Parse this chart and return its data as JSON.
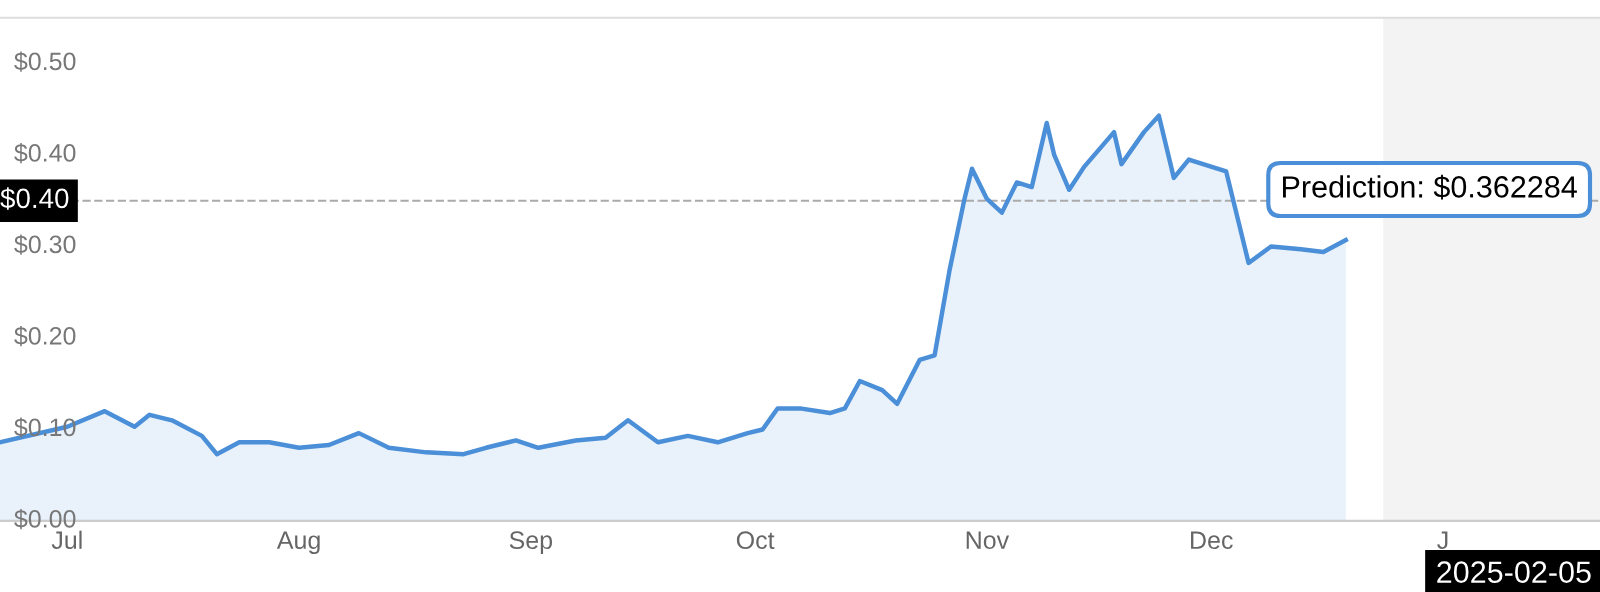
{
  "chart_data": {
    "type": "area",
    "x": [
      "2024-06-22",
      "2024-07-01",
      "2024-07-06",
      "2024-07-10",
      "2024-07-12",
      "2024-07-15",
      "2024-07-19",
      "2024-07-21",
      "2024-07-24",
      "2024-07-28",
      "2024-08-01",
      "2024-08-05",
      "2024-08-09",
      "2024-08-13",
      "2024-08-18",
      "2024-08-23",
      "2024-08-26",
      "2024-08-30",
      "2024-09-02",
      "2024-09-07",
      "2024-09-11",
      "2024-09-14",
      "2024-09-18",
      "2024-09-22",
      "2024-09-26",
      "2024-09-30",
      "2024-10-02",
      "2024-10-04",
      "2024-10-07",
      "2024-10-11",
      "2024-10-13",
      "2024-10-15",
      "2024-10-18",
      "2024-10-20",
      "2024-10-23",
      "2024-10-25",
      "2024-10-27",
      "2024-10-29",
      "2024-10-30",
      "2024-11-01",
      "2024-11-03",
      "2024-11-05",
      "2024-11-07",
      "2024-11-09",
      "2024-11-10",
      "2024-11-12",
      "2024-11-14",
      "2024-11-18",
      "2024-11-19",
      "2024-11-22",
      "2024-11-24",
      "2024-11-26",
      "2024-11-28",
      "2024-12-03",
      "2024-12-06",
      "2024-12-09",
      "2024-12-13",
      "2024-12-16",
      "2024-12-19"
    ],
    "series": [
      {
        "color": "#4a8fd8",
        "values": [
          0.086,
          0.103,
          0.12,
          0.103,
          0.116,
          0.11,
          0.093,
          0.073,
          0.086,
          0.086,
          0.08,
          0.083,
          0.096,
          0.08,
          0.075,
          0.073,
          0.08,
          0.088,
          0.08,
          0.088,
          0.091,
          0.11,
          0.086,
          0.093,
          0.086,
          0.096,
          0.1,
          0.123,
          0.123,
          0.118,
          0.123,
          0.153,
          0.143,
          0.128,
          0.176,
          0.181,
          0.274,
          0.352,
          0.385,
          0.352,
          0.337,
          0.37,
          0.365,
          0.435,
          0.4,
          0.362,
          0.387,
          0.425,
          0.39,
          0.425,
          0.443,
          0.375,
          0.395,
          0.382,
          0.282,
          0.3,
          0.297,
          0.294,
          0.307
        ]
      }
    ],
    "xlim": [
      "2024-06-22",
      "2025-01-22"
    ],
    "xticks": [
      {
        "value": "2024-07-01",
        "label": "Jul"
      },
      {
        "value": "2024-08-01",
        "label": "Aug"
      },
      {
        "value": "2024-09-01",
        "label": "Sep"
      },
      {
        "value": "2024-10-01",
        "label": "Oct"
      },
      {
        "value": "2024-11-01",
        "label": "Nov"
      },
      {
        "value": "2024-12-01",
        "label": "Dec"
      },
      {
        "value": "2025-01-01",
        "label": "J"
      }
    ],
    "ylim": [
      0,
      0.55
    ],
    "yticks": [
      {
        "value": 0,
        "label": "$0.00"
      },
      {
        "value": 0.1,
        "label": "$0.10"
      },
      {
        "value": 0.2,
        "label": "$0.20"
      },
      {
        "value": 0.3,
        "label": "$0.30"
      },
      {
        "value": 0.4,
        "label": "$0.40"
      },
      {
        "value": 0.5,
        "label": "$0.50"
      }
    ],
    "ref_lines": [
      {
        "axis": "y",
        "value": 0.35,
        "color": "#aaaaaa",
        "line_style": "dashed"
      }
    ],
    "bands": [
      {
        "axis": "x",
        "from": "2024-12-24",
        "to": "2025-01-22",
        "color": "#f3f3f3"
      }
    ],
    "annotations": [
      {
        "text": "Prediction: $0.362284",
        "x": "2025-01-22",
        "y": 0.362284
      },
      "$0.40",
      "2025-02-05"
    ],
    "grid": false
  }
}
